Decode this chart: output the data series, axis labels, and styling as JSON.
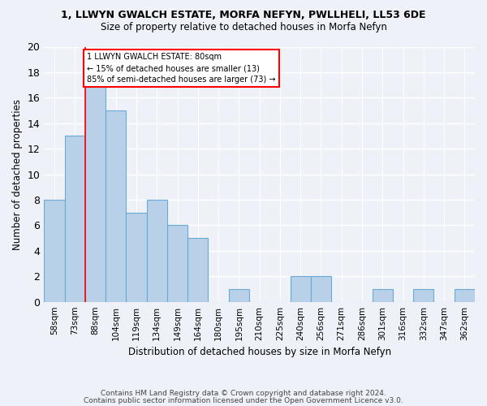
{
  "title1": "1, LLWYN GWALCH ESTATE, MORFA NEFYN, PWLLHELI, LL53 6DE",
  "title2": "Size of property relative to detached houses in Morfa Nefyn",
  "xlabel": "Distribution of detached houses by size in Morfa Nefyn",
  "ylabel": "Number of detached properties",
  "categories": [
    "58sqm",
    "73sqm",
    "88sqm",
    "104sqm",
    "119sqm",
    "134sqm",
    "149sqm",
    "164sqm",
    "180sqm",
    "195sqm",
    "210sqm",
    "225sqm",
    "240sqm",
    "256sqm",
    "271sqm",
    "286sqm",
    "301sqm",
    "316sqm",
    "332sqm",
    "347sqm",
    "362sqm"
  ],
  "values": [
    8,
    13,
    17,
    15,
    7,
    8,
    6,
    5,
    0,
    1,
    0,
    0,
    2,
    2,
    0,
    0,
    1,
    0,
    1,
    0,
    1
  ],
  "bar_color": "#b8d0e8",
  "bar_edge_color": "#6aaad4",
  "red_line_index": 1.5,
  "annotation_text": "1 LLWYN GWALCH ESTATE: 80sqm\n← 15% of detached houses are smaller (13)\n85% of semi-detached houses are larger (73) →",
  "annotation_box_color": "white",
  "annotation_box_edge": "red",
  "footer1": "Contains HM Land Registry data © Crown copyright and database right 2024.",
  "footer2": "Contains public sector information licensed under the Open Government Licence v3.0.",
  "ylim": [
    0,
    20
  ],
  "yticks": [
    0,
    2,
    4,
    6,
    8,
    10,
    12,
    14,
    16,
    18,
    20
  ],
  "background_color": "#eef2f8",
  "grid_color": "white",
  "title1_fontsize": 9.0,
  "title2_fontsize": 8.5,
  "ylabel_fontsize": 8.5,
  "xlabel_fontsize": 8.5,
  "tick_fontsize": 7.5,
  "footer_fontsize": 6.5
}
